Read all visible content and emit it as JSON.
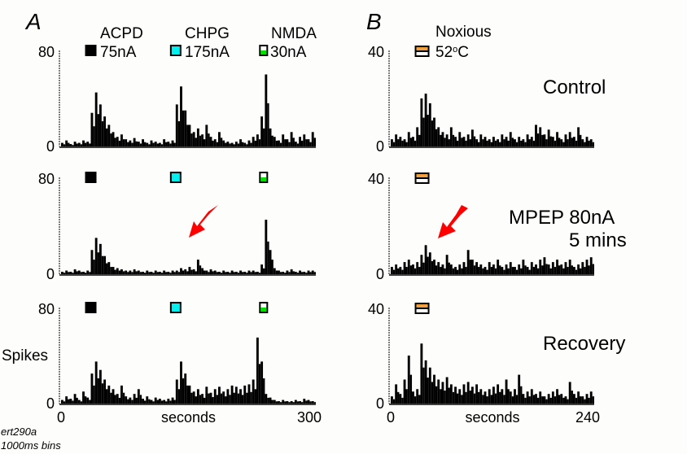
{
  "colors": {
    "bar": "#000000",
    "acpd": "#000000",
    "chpg": "#00f0f0",
    "nmda": "#00e000",
    "noxious": "#f0a040",
    "arrow": "#ff0000"
  },
  "panel_labels": {
    "a": "A",
    "b": "B"
  },
  "legend": {
    "acpd": {
      "name": "ACPD",
      "dose": "75nA"
    },
    "chpg": {
      "name": "CHPG",
      "dose": "175nA"
    },
    "nmda": {
      "name": "NMDA",
      "dose": "30nA"
    },
    "noxious": {
      "name": "Noxious",
      "dose": "52",
      "unit_sup": "o",
      "unit": "C"
    }
  },
  "conditions": {
    "control": "Control",
    "mpep_1": "MPEP 80nA",
    "mpep_2": "5 mins",
    "recovery": "Recovery"
  },
  "ylabel": "Spikes",
  "footer": {
    "file": "ert290a",
    "bins": "1000ms bins"
  },
  "chart_data": [
    {
      "type": "bar",
      "panel": "A",
      "row": "Control",
      "xlabel": "seconds",
      "xlim": [
        0,
        300
      ],
      "ylim": [
        0,
        80
      ],
      "yticks": [
        "80",
        "0"
      ],
      "xticks": [
        "0",
        "300"
      ],
      "stimuli": [
        {
          "name": "ACPD",
          "time": 35
        },
        {
          "name": "CHPG",
          "time": 135
        },
        {
          "name": "NMDA",
          "time": 238
        }
      ],
      "values": [
        3,
        5,
        2,
        4,
        3,
        5,
        4,
        28,
        45,
        35,
        25,
        18,
        12,
        8,
        10,
        6,
        5,
        7,
        4,
        6,
        3,
        5,
        4,
        3,
        6,
        4,
        5,
        35,
        50,
        30,
        18,
        12,
        15,
        10,
        18,
        8,
        6,
        12,
        5,
        4,
        3,
        4,
        6,
        3,
        5,
        8,
        10,
        25,
        60,
        15,
        8,
        5,
        10,
        6,
        12,
        4,
        8,
        10,
        6,
        12
      ]
    },
    {
      "type": "bar",
      "panel": "A",
      "row": "MPEP 80nA 5 mins",
      "xlabel": "seconds",
      "xlim": [
        0,
        300
      ],
      "ylim": [
        0,
        80
      ],
      "yticks": [
        "80",
        "0"
      ],
      "xticks": [
        "0",
        "300"
      ],
      "stimuli": [
        {
          "name": "ACPD",
          "time": 35
        },
        {
          "name": "CHPG",
          "time": 135
        },
        {
          "name": "NMDA",
          "time": 238
        }
      ],
      "values": [
        2,
        3,
        2,
        4,
        3,
        2,
        3,
        20,
        30,
        25,
        15,
        10,
        6,
        5,
        4,
        3,
        3,
        4,
        3,
        2,
        3,
        2,
        3,
        2,
        3,
        2,
        3,
        3,
        5,
        4,
        6,
        4,
        12,
        5,
        3,
        4,
        3,
        2,
        3,
        2,
        3,
        2,
        3,
        2,
        3,
        3,
        2,
        8,
        45,
        20,
        5,
        3,
        2,
        3,
        4,
        2,
        3,
        2,
        3,
        3
      ]
    },
    {
      "type": "bar",
      "panel": "A",
      "row": "Recovery",
      "xlabel": "seconds",
      "xlim": [
        0,
        300
      ],
      "ylim": [
        0,
        80
      ],
      "yticks": [
        "80",
        "0"
      ],
      "xticks": [
        "0",
        "300"
      ],
      "stimuli": [
        {
          "name": "ACPD",
          "time": 35
        },
        {
          "name": "CHPG",
          "time": 135
        },
        {
          "name": "NMDA",
          "time": 238
        }
      ],
      "values": [
        3,
        6,
        4,
        8,
        3,
        10,
        5,
        25,
        35,
        28,
        20,
        15,
        12,
        8,
        15,
        6,
        5,
        8,
        12,
        4,
        6,
        3,
        5,
        4,
        3,
        4,
        5,
        20,
        35,
        25,
        15,
        10,
        12,
        8,
        14,
        9,
        12,
        14,
        10,
        12,
        15,
        14,
        12,
        15,
        16,
        20,
        55,
        35,
        8,
        5,
        3,
        2,
        3,
        2,
        2,
        3,
        2,
        4,
        3,
        2
      ]
    },
    {
      "type": "bar",
      "panel": "B",
      "row": "Control",
      "xlabel": "seconds",
      "xlim": [
        0,
        240
      ],
      "ylim": [
        0,
        40
      ],
      "yticks": [
        "40",
        "0"
      ],
      "xticks": [
        "0",
        "240"
      ],
      "stimuli": [
        {
          "name": "Noxious",
          "time": 37
        }
      ],
      "values": [
        3,
        5,
        4,
        3,
        6,
        4,
        8,
        20,
        22,
        18,
        12,
        8,
        6,
        5,
        8,
        4,
        6,
        4,
        5,
        7,
        3,
        5,
        4,
        3,
        4,
        3,
        5,
        4,
        6,
        3,
        4,
        3,
        5,
        4,
        9,
        8,
        5,
        7,
        4,
        6,
        3,
        5,
        6,
        4,
        8,
        3,
        4,
        3
      ]
    },
    {
      "type": "bar",
      "panel": "B",
      "row": "MPEP 80nA 5 mins",
      "xlabel": "seconds",
      "xlim": [
        0,
        240
      ],
      "ylim": [
        0,
        40
      ],
      "yticks": [
        "40",
        "0"
      ],
      "xticks": [
        "0",
        "240"
      ],
      "stimuli": [
        {
          "name": "Noxious",
          "time": 37
        }
      ],
      "values": [
        3,
        4,
        3,
        5,
        6,
        4,
        5,
        8,
        12,
        9,
        6,
        5,
        4,
        8,
        4,
        3,
        4,
        5,
        10,
        6,
        5,
        4,
        3,
        5,
        4,
        6,
        3,
        4,
        5,
        3,
        4,
        6,
        3,
        5,
        4,
        6,
        7,
        4,
        5,
        6,
        4,
        5,
        6,
        3,
        4,
        5,
        6,
        7
      ]
    },
    {
      "type": "bar",
      "panel": "B",
      "row": "Recovery",
      "xlabel": "seconds",
      "xlim": [
        0,
        240
      ],
      "ylim": [
        0,
        40
      ],
      "yticks": [
        "40",
        "0"
      ],
      "xticks": [
        "0",
        "240"
      ],
      "stimuli": [
        {
          "name": "Noxious",
          "time": 37
        }
      ],
      "values": [
        3,
        8,
        4,
        10,
        20,
        5,
        6,
        25,
        18,
        15,
        12,
        10,
        9,
        11,
        8,
        7,
        6,
        8,
        9,
        7,
        8,
        6,
        5,
        6,
        7,
        8,
        6,
        10,
        5,
        6,
        12,
        4,
        5,
        6,
        4,
        5,
        3,
        4,
        5,
        6,
        4,
        3,
        9,
        4,
        5,
        3,
        4,
        5
      ]
    }
  ]
}
